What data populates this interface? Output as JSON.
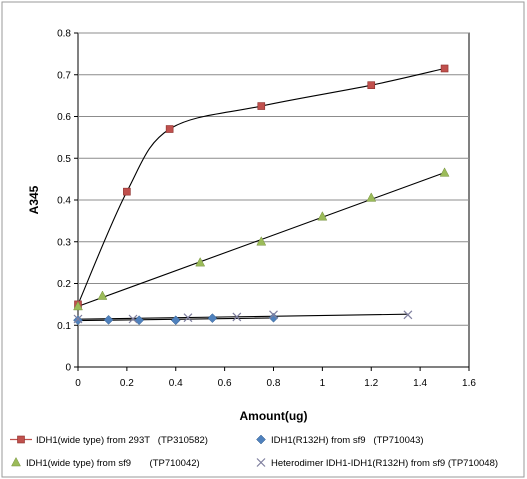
{
  "chart_data": {
    "type": "scatter",
    "title": "",
    "xlabel": "Amount(ug)",
    "ylabel": "A345",
    "xlim": [
      0,
      1.6
    ],
    "ylim": [
      0,
      0.8
    ],
    "x_ticks": [
      "0",
      "0.2",
      "0.4",
      "0.6",
      "0.8",
      "1",
      "1.2",
      "1.4",
      "1.6"
    ],
    "y_ticks": [
      "0",
      "0.1",
      "0.2",
      "0.3",
      "0.4",
      "0.5",
      "0.6",
      "0.7",
      "0.8"
    ],
    "grid": true,
    "legend_position": "bottom",
    "series": [
      {
        "name": "IDH1(wide type) from 293T   (TP310582)",
        "marker": "square",
        "color": "#c0504d",
        "line": "smooth",
        "x": [
          0,
          0.2,
          0.375,
          0.75,
          1.2,
          1.5
        ],
        "y": [
          0.15,
          0.42,
          0.57,
          0.625,
          0.675,
          0.715
        ]
      },
      {
        "name": "IDH1(R132H) from sf9   (TP710043)",
        "marker": "diamond",
        "color": "#4f81bd",
        "line": "linear-fit",
        "x": [
          0,
          0.125,
          0.25,
          0.4,
          0.55,
          0.8
        ],
        "y": [
          0.112,
          0.113,
          0.112,
          0.112,
          0.117,
          0.118
        ]
      },
      {
        "name": "IDH1(wide type) from sf9       (TP710042)",
        "marker": "triangle",
        "color": "#9bbb59",
        "line": "linear-fit",
        "x": [
          0,
          0.1,
          0.5,
          0.75,
          1.0,
          1.2,
          1.5
        ],
        "y": [
          0.145,
          0.17,
          0.25,
          0.3,
          0.36,
          0.405,
          0.465
        ]
      },
      {
        "name": "Heterodimer IDH1-IDH1(R132H) from sf9 (TP710048)",
        "marker": "x",
        "color": "#7f7f9f",
        "line": "linear-fit",
        "x": [
          0,
          0.225,
          0.45,
          0.65,
          0.8,
          1.35
        ],
        "y": [
          0.115,
          0.115,
          0.118,
          0.12,
          0.125,
          0.125
        ]
      }
    ]
  }
}
